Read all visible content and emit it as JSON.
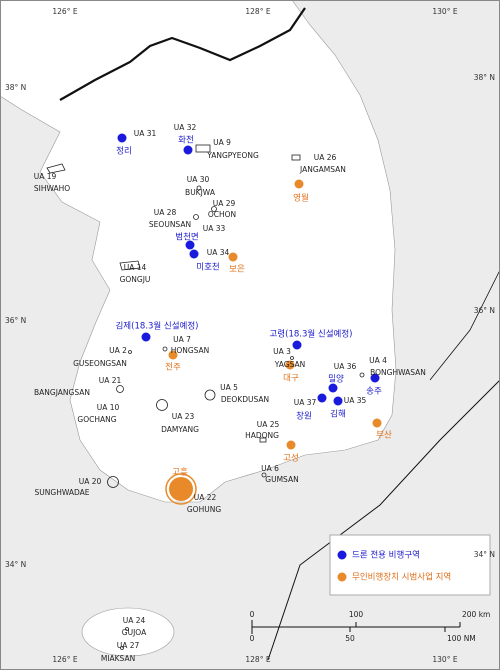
{
  "graticule": {
    "top": [
      "126° E",
      "128° E",
      "130° E"
    ],
    "bottom": [
      "126° E",
      "128° E",
      "130° E"
    ],
    "left": [
      "38° N",
      "36° N",
      "34° N"
    ],
    "right": [
      "38° N",
      "36° N",
      "34° N"
    ]
  },
  "drone_zones": [
    "정리",
    "화전",
    "범천면",
    "미호천",
    "김제(18.3월 신설예정)",
    "고령(18.3월 신설예정)",
    "밀양",
    "김해",
    "창원",
    "송주"
  ],
  "test_sites": [
    "영월",
    "보은",
    "전주",
    "대구",
    "고성",
    "부산",
    "고흥"
  ],
  "ua_labels": [
    "UA 31",
    "UA 32",
    "UA 9",
    "YANGPYEONG",
    "UA 26",
    "JANGAMSAN",
    "UA 19",
    "SIHWAHO",
    "UA 30",
    "BUKJWA",
    "UA 29",
    "OCHON",
    "UA 28",
    "SEOUNSAN",
    "UA 33",
    "UA 34",
    "UA 14",
    "GONGJU",
    "UA 7",
    "UA 2",
    "GUSEONGSAN",
    "HONGSAN",
    "UA 3",
    "YAGSAN",
    "UA 36",
    "UA 4",
    "BONGHWASAN",
    "UA 21",
    "BANGJANGSAN",
    "UA 5",
    "DEOKDUSAN",
    "UA 37",
    "UA 35",
    "UA 10",
    "GOCHANG",
    "UA 23",
    "DAMYANG",
    "UA 25",
    "HADONG",
    "UA 6",
    "GUMSAN",
    "UA 20",
    "SUNGHWADAE",
    "UA 22",
    "GOHUNG",
    "UA 24",
    "GUJOA",
    "UA 27",
    "MIAKSAN"
  ],
  "legend": {
    "items": [
      {
        "label": "드론 전용 비행구역",
        "color": "#1a1add"
      },
      {
        "label": "무인비행장치 시범사업 지역",
        "color": "#e8892a"
      }
    ]
  },
  "scale_bar": {
    "km": [
      "0",
      "100",
      "200 km"
    ],
    "nm": [
      "0",
      "50",
      "100 NM"
    ]
  }
}
